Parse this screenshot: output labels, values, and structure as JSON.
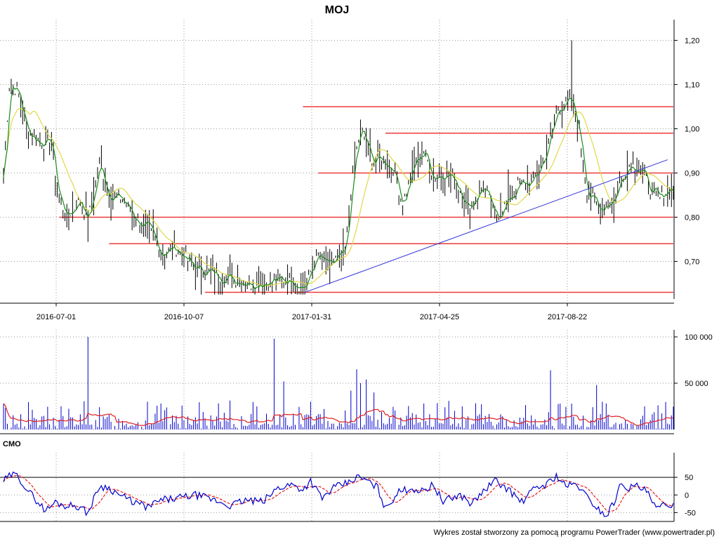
{
  "chart_data": [
    {
      "type": "candlestick",
      "title": "MOJ",
      "x_tick_labels": [
        "2016-07-01",
        "2016-10-07",
        "2017-01-31",
        "2017-04-25",
        "2017-08-22"
      ],
      "y_tick_labels": [
        "1,20",
        "1,10",
        "1,00",
        "0,90",
        "0,80",
        "0,70"
      ],
      "ylim": [
        0.615,
        1.215
      ],
      "grid": true,
      "colors": {
        "bars": "#000000",
        "fast_ma": "#1a8c1a",
        "slow_ma": "#e0d84a",
        "support_resistance": "#ee3a3a",
        "trendline": "#3434dd"
      },
      "horizontal_levels": [
        {
          "y": 1.05,
          "from_bar": 156,
          "to_bar": 349
        },
        {
          "y": 0.99,
          "from_bar": 199,
          "to_bar": 349
        },
        {
          "y": 0.9,
          "from_bar": 164,
          "to_bar": 349
        },
        {
          "y": 0.8,
          "from_bar": 29,
          "to_bar": 349
        },
        {
          "y": 0.74,
          "from_bar": 55,
          "to_bar": 349
        },
        {
          "y": 0.63,
          "from_bar": 105,
          "to_bar": 349
        }
      ],
      "trendline": {
        "from_bar": 157,
        "from_y": 0.63,
        "to_bar": 346,
        "to_y": 0.93
      },
      "price_segments": [
        [
          0,
          0.89
        ],
        [
          3,
          1.1
        ],
        [
          7,
          1.09
        ],
        [
          12,
          1.0
        ],
        [
          18,
          0.97
        ],
        [
          25,
          0.97
        ],
        [
          28,
          0.86
        ],
        [
          33,
          0.8
        ],
        [
          40,
          0.84
        ],
        [
          44,
          0.79
        ],
        [
          50,
          0.92
        ],
        [
          55,
          0.85
        ],
        [
          62,
          0.84
        ],
        [
          70,
          0.79
        ],
        [
          76,
          0.77
        ],
        [
          82,
          0.72
        ],
        [
          90,
          0.73
        ],
        [
          98,
          0.69
        ],
        [
          110,
          0.67
        ],
        [
          120,
          0.66
        ],
        [
          130,
          0.65
        ],
        [
          140,
          0.655
        ],
        [
          150,
          0.66
        ],
        [
          157,
          0.64
        ],
        [
          163,
          0.71
        ],
        [
          170,
          0.69
        ],
        [
          178,
          0.72
        ],
        [
          182,
          0.9
        ],
        [
          186,
          1.0
        ],
        [
          192,
          0.93
        ],
        [
          197,
          0.93
        ],
        [
          203,
          0.91
        ],
        [
          208,
          0.83
        ],
        [
          214,
          0.92
        ],
        [
          219,
          0.95
        ],
        [
          224,
          0.89
        ],
        [
          230,
          0.9
        ],
        [
          236,
          0.88
        ],
        [
          242,
          0.82
        ],
        [
          250,
          0.87
        ],
        [
          256,
          0.8
        ],
        [
          262,
          0.83
        ],
        [
          268,
          0.87
        ],
        [
          276,
          0.88
        ],
        [
          283,
          0.95
        ],
        [
          289,
          1.05
        ],
        [
          296,
          1.06
        ],
        [
          300,
          0.99
        ],
        [
          304,
          0.86
        ],
        [
          310,
          0.82
        ],
        [
          318,
          0.84
        ],
        [
          322,
          0.89
        ],
        [
          326,
          0.92
        ],
        [
          332,
          0.91
        ],
        [
          337,
          0.86
        ],
        [
          342,
          0.84
        ],
        [
          347,
          0.87
        ],
        [
          349,
          0.86
        ]
      ],
      "ma_fast_period": 3,
      "ma_slow_period": 15
    },
    {
      "type": "bar",
      "name": "volume",
      "y_tick_labels": [
        "100 000",
        "50 000"
      ],
      "ylim": [
        0,
        100000
      ],
      "colors": {
        "bars": "#0000cc",
        "average": "#e02020"
      },
      "spikes": [
        {
          "bar": 0,
          "value": 28000
        },
        {
          "bar": 30,
          "value": 25000
        },
        {
          "bar": 44,
          "value": 100000
        },
        {
          "bar": 75,
          "value": 30000
        },
        {
          "bar": 82,
          "value": 28000
        },
        {
          "bar": 141,
          "value": 98000
        },
        {
          "bar": 146,
          "value": 52000
        },
        {
          "bar": 160,
          "value": 30000
        },
        {
          "bar": 181,
          "value": 42000
        },
        {
          "bar": 184,
          "value": 65000
        },
        {
          "bar": 186,
          "value": 50000
        },
        {
          "bar": 189,
          "value": 54000
        },
        {
          "bar": 193,
          "value": 40000
        },
        {
          "bar": 219,
          "value": 28000
        },
        {
          "bar": 239,
          "value": 25000
        },
        {
          "bar": 285,
          "value": 64000
        },
        {
          "bar": 290,
          "value": 28000
        },
        {
          "bar": 309,
          "value": 48000
        },
        {
          "bar": 312,
          "value": 30000
        },
        {
          "bar": 334,
          "value": 25000
        }
      ],
      "base_level": 7000,
      "average_period": 15
    },
    {
      "type": "line",
      "name": "CMO",
      "panel_label": "CMO",
      "y_tick_labels": [
        "50",
        "0",
        "-50"
      ],
      "ylim": [
        -75,
        80
      ],
      "threshold_lines": [
        50
      ],
      "colors": {
        "line": "#0000cc",
        "signal": "#e02020",
        "threshold": "#000000"
      },
      "segments": [
        [
          0,
          40
        ],
        [
          5,
          60
        ],
        [
          8,
          50
        ],
        [
          13,
          10
        ],
        [
          18,
          -20
        ],
        [
          22,
          -45
        ],
        [
          27,
          -20
        ],
        [
          32,
          -30
        ],
        [
          38,
          -30
        ],
        [
          44,
          -50
        ],
        [
          50,
          25
        ],
        [
          55,
          20
        ],
        [
          62,
          -5
        ],
        [
          68,
          -20
        ],
        [
          75,
          -35
        ],
        [
          82,
          -15
        ],
        [
          90,
          -10
        ],
        [
          100,
          0
        ],
        [
          110,
          -15
        ],
        [
          118,
          -30
        ],
        [
          126,
          -15
        ],
        [
          135,
          -20
        ],
        [
          143,
          20
        ],
        [
          150,
          30
        ],
        [
          156,
          15
        ],
        [
          160,
          40
        ],
        [
          166,
          -10
        ],
        [
          172,
          20
        ],
        [
          180,
          35
        ],
        [
          184,
          50
        ],
        [
          188,
          45
        ],
        [
          195,
          20
        ],
        [
          199,
          -40
        ],
        [
          205,
          5
        ],
        [
          212,
          20
        ],
        [
          218,
          10
        ],
        [
          224,
          30
        ],
        [
          229,
          -20
        ],
        [
          233,
          -10
        ],
        [
          238,
          0
        ],
        [
          244,
          -25
        ],
        [
          250,
          10
        ],
        [
          256,
          40
        ],
        [
          262,
          20
        ],
        [
          270,
          -20
        ],
        [
          277,
          20
        ],
        [
          283,
          30
        ],
        [
          288,
          55
        ],
        [
          293,
          25
        ],
        [
          299,
          30
        ],
        [
          303,
          0
        ],
        [
          309,
          -35
        ],
        [
          314,
          -60
        ],
        [
          318,
          -20
        ],
        [
          322,
          35
        ],
        [
          326,
          20
        ],
        [
          330,
          25
        ],
        [
          335,
          10
        ],
        [
          340,
          -40
        ],
        [
          344,
          -30
        ],
        [
          349,
          -25
        ]
      ],
      "signal_period": 9
    }
  ],
  "footer": {
    "text": "Wykres został stworzony za pomocą programu PowerTrader (www.powertrader.pl)"
  }
}
